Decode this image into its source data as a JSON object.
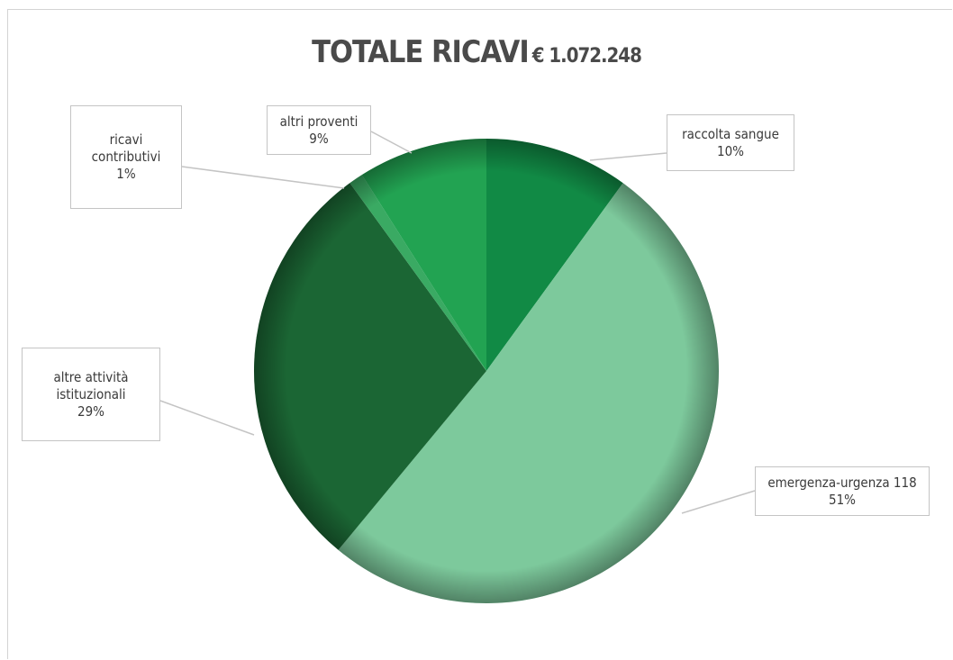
{
  "chart_data": {
    "type": "pie",
    "title": "TOTALE RICAVI",
    "title_suffix": "€ 1.072.248",
    "categories": [
      "raccolta sangue",
      "emergenza-urgenza 118",
      "altre attività istituzionali",
      "ricavi contributivi",
      "altri proventi"
    ],
    "values": [
      10,
      51,
      29,
      1,
      9
    ],
    "value_labels": [
      "10%",
      "51%",
      "29%",
      "1%",
      "9%"
    ],
    "colors": [
      "#118a45",
      "#7dc99c",
      "#1b6634",
      "#3aaa63",
      "#22a352"
    ]
  }
}
